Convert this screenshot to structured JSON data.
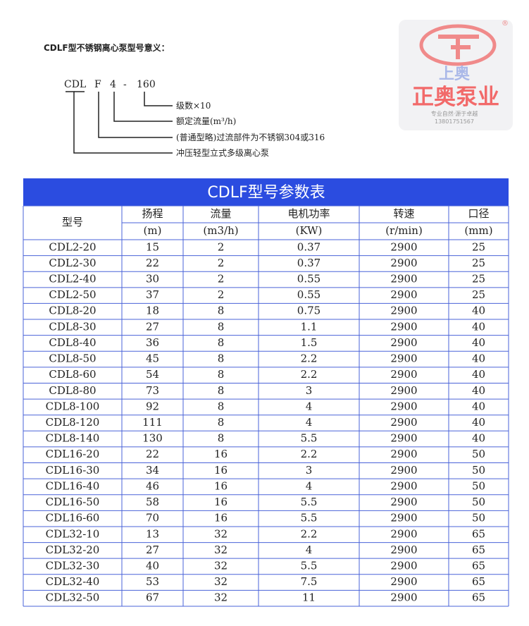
{
  "header": {
    "title": "CDLF型不锈钢离心泵型号意义："
  },
  "diagram": {
    "codes": [
      "CDL",
      "F",
      "4",
      "-",
      "160"
    ],
    "meanings": [
      "级数×10",
      "额定流量(m³/h)",
      "(普通型略)过流部件为不锈钢304或316",
      "冲压轻型立式多级离心泵"
    ]
  },
  "logo": {
    "mark": "®",
    "top": "上奥",
    "brand": "正奥泵业",
    "slogan": "专业自然·源于卓越",
    "phone": "13801751567"
  },
  "table": {
    "title": "CDLF型号参数表",
    "columns": [
      {
        "name": "型号"
      },
      {
        "name": "扬程",
        "unit": "(m)"
      },
      {
        "name": "流量",
        "unit": "(m3/h)"
      },
      {
        "name": "电机功率",
        "unit": "(KW)"
      },
      {
        "name": "转速",
        "unit": "(r/min)"
      },
      {
        "name": "口径",
        "unit": "(mm)"
      }
    ],
    "rows": [
      [
        "CDL2-20",
        "15",
        "2",
        "0.37",
        "2900",
        "25"
      ],
      [
        "CDL2-30",
        "22",
        "2",
        "0.37",
        "2900",
        "25"
      ],
      [
        "CDL2-40",
        "30",
        "2",
        "0.55",
        "2900",
        "25"
      ],
      [
        "CDL2-50",
        "37",
        "2",
        "0.55",
        "2900",
        "25"
      ],
      [
        "CDL8-20",
        "18",
        "8",
        "0.75",
        "2900",
        "40"
      ],
      [
        "CDL8-30",
        "27",
        "8",
        "1.1",
        "2900",
        "40"
      ],
      [
        "CDL8-40",
        "36",
        "8",
        "1.5",
        "2900",
        "40"
      ],
      [
        "CDL8-50",
        "45",
        "8",
        "2.2",
        "2900",
        "40"
      ],
      [
        "CDL8-60",
        "54",
        "8",
        "2.2",
        "2900",
        "40"
      ],
      [
        "CDL8-80",
        "73",
        "8",
        "3",
        "2900",
        "40"
      ],
      [
        "CDL8-100",
        "92",
        "8",
        "4",
        "2900",
        "40"
      ],
      [
        "CDL8-120",
        "111",
        "8",
        "4",
        "2900",
        "40"
      ],
      [
        "CDL8-140",
        "130",
        "8",
        "5.5",
        "2900",
        "40"
      ],
      [
        "CDL16-20",
        "22",
        "16",
        "2.2",
        "2900",
        "50"
      ],
      [
        "CDL16-30",
        "34",
        "16",
        "3",
        "2900",
        "50"
      ],
      [
        "CDL16-40",
        "46",
        "16",
        "4",
        "2900",
        "50"
      ],
      [
        "CDL16-50",
        "58",
        "16",
        "5.5",
        "2900",
        "50"
      ],
      [
        "CDL16-60",
        "70",
        "16",
        "5.5",
        "2900",
        "50"
      ],
      [
        "CDL32-10",
        "13",
        "32",
        "2.2",
        "2900",
        "65"
      ],
      [
        "CDL32-20",
        "27",
        "32",
        "4",
        "2900",
        "65"
      ],
      [
        "CDL32-30",
        "40",
        "32",
        "5.5",
        "2900",
        "65"
      ],
      [
        "CDL32-40",
        "53",
        "32",
        "7.5",
        "2900",
        "65"
      ],
      [
        "CDL32-50",
        "67",
        "32",
        "11",
        "2900",
        "65"
      ]
    ]
  }
}
